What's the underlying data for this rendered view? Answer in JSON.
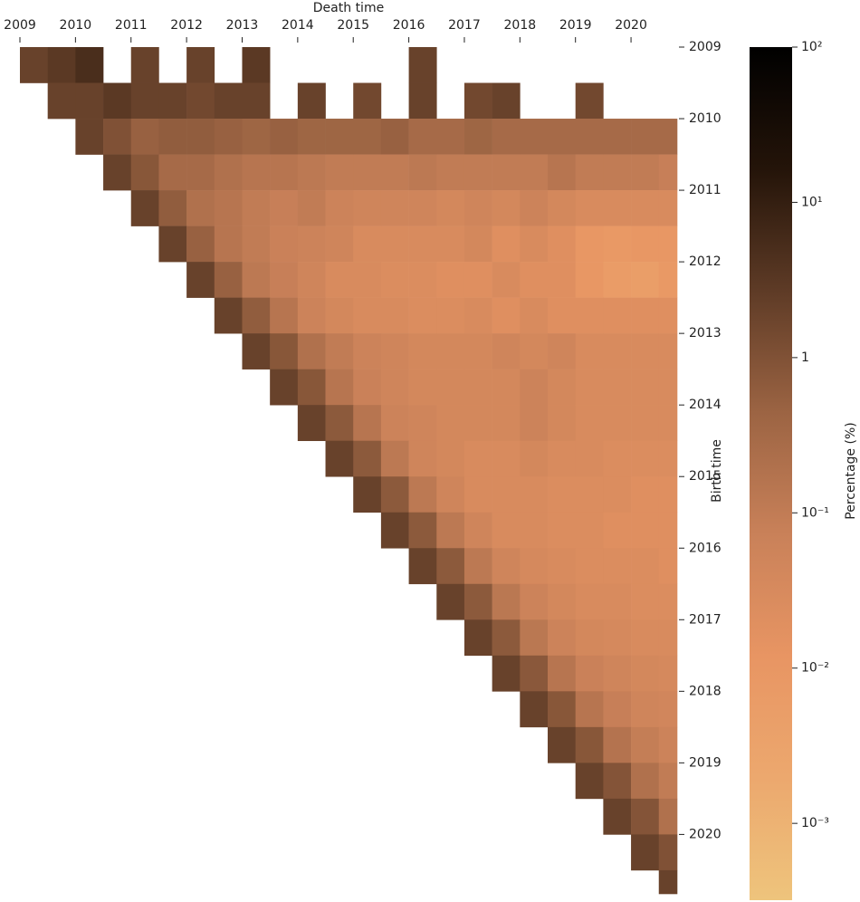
{
  "chart_data": {
    "type": "heatmap",
    "xlabel": "Death time",
    "ylabel": "Birth time",
    "colorbar_label": "Percentage (%)",
    "xbins": [
      2009,
      2009.5,
      2010,
      2010.5,
      2011,
      2011.5,
      2012,
      2012.5,
      2013,
      2013.5,
      2014,
      2014.5,
      2015,
      2015.5,
      2016,
      2016.5,
      2017,
      2017.5,
      2018,
      2018.5,
      2019,
      2019.5,
      2020,
      2020.5,
      2020.83
    ],
    "ybins": [
      2009,
      2009.5,
      2010,
      2010.5,
      2011,
      2011.5,
      2012,
      2012.5,
      2013,
      2013.5,
      2014,
      2014.5,
      2015,
      2015.5,
      2016,
      2016.5,
      2017,
      2017.5,
      2018,
      2018.5,
      2019,
      2019.5,
      2020,
      2020.5,
      2020.83
    ],
    "xlim": [
      2009,
      2020.83
    ],
    "ylim": [
      2009,
      2020.83
    ],
    "xticks": [
      2009,
      2010,
      2011,
      2012,
      2013,
      2014,
      2015,
      2016,
      2017,
      2018,
      2019,
      2020
    ],
    "yticks": [
      2009,
      2010,
      2011,
      2012,
      2013,
      2014,
      2015,
      2016,
      2017,
      2018,
      2019,
      2020
    ],
    "clim": [
      0.00032,
      100
    ],
    "log_color": true,
    "colormap": [
      "#eec47c",
      "#eca86e",
      "#e89563",
      "#c98159",
      "#9c6443",
      "#5e3b26",
      "#241409",
      "#000000"
    ],
    "cticks": [
      {
        "value": 0.001,
        "label": "10⁻³"
      },
      {
        "value": 0.01,
        "label": "10⁻²"
      },
      {
        "value": 0.1,
        "label": "10⁻¹"
      },
      1,
      {
        "value": 10,
        "label": "10¹"
      },
      {
        "value": 100,
        "label": "10²"
      }
    ],
    "z": [
      [
        2,
        3,
        5,
        null,
        2,
        null,
        2,
        null,
        3,
        null,
        null,
        null,
        null,
        null,
        2,
        null,
        null,
        null,
        null,
        null,
        null,
        null,
        null,
        null
      ],
      [
        null,
        2,
        2,
        3,
        2,
        2,
        1.5,
        2,
        2,
        null,
        2,
        null,
        1.5,
        null,
        2,
        null,
        1.5,
        2,
        null,
        null,
        1.5,
        null,
        null,
        null
      ],
      [
        null,
        null,
        2,
        1,
        0.5,
        0.6,
        0.6,
        0.5,
        0.4,
        0.5,
        0.4,
        0.4,
        0.4,
        0.5,
        0.3,
        0.3,
        0.4,
        0.3,
        0.3,
        0.3,
        0.3,
        0.3,
        0.3,
        0.3
      ],
      [
        null,
        null,
        null,
        2,
        0.8,
        0.3,
        0.3,
        0.2,
        0.15,
        0.15,
        0.12,
        0.1,
        0.1,
        0.1,
        0.12,
        0.1,
        0.1,
        0.1,
        0.1,
        0.15,
        0.1,
        0.1,
        0.1,
        0.08
      ],
      [
        null,
        null,
        null,
        null,
        2,
        0.6,
        0.2,
        0.15,
        0.1,
        0.08,
        0.1,
        0.06,
        0.05,
        0.05,
        0.05,
        0.04,
        0.05,
        0.04,
        0.06,
        0.04,
        0.03,
        0.03,
        0.03,
        0.03
      ],
      [
        null,
        null,
        null,
        null,
        null,
        2,
        0.5,
        0.15,
        0.1,
        0.07,
        0.06,
        0.05,
        0.03,
        0.03,
        0.03,
        0.03,
        0.04,
        0.02,
        0.03,
        0.02,
        0.01,
        0.008,
        0.01,
        0.01
      ],
      [
        null,
        null,
        null,
        null,
        null,
        null,
        2,
        0.5,
        0.12,
        0.08,
        0.05,
        0.03,
        0.03,
        0.025,
        0.025,
        0.02,
        0.02,
        0.03,
        0.02,
        0.02,
        0.01,
        0.006,
        0.005,
        0.008
      ],
      [
        null,
        null,
        null,
        null,
        null,
        null,
        null,
        2,
        0.6,
        0.15,
        0.06,
        0.04,
        0.03,
        0.03,
        0.025,
        0.025,
        0.03,
        0.02,
        0.03,
        0.02,
        0.02,
        0.02,
        0.02,
        0.02
      ],
      [
        null,
        null,
        null,
        null,
        null,
        null,
        null,
        null,
        2,
        0.8,
        0.2,
        0.1,
        0.06,
        0.05,
        0.04,
        0.04,
        0.04,
        0.05,
        0.04,
        0.05,
        0.03,
        0.03,
        0.03,
        0.03
      ],
      [
        null,
        null,
        null,
        null,
        null,
        null,
        null,
        null,
        null,
        2,
        0.8,
        0.15,
        0.07,
        0.05,
        0.04,
        0.04,
        0.04,
        0.04,
        0.06,
        0.04,
        0.03,
        0.03,
        0.03,
        0.03
      ],
      [
        null,
        null,
        null,
        null,
        null,
        null,
        null,
        null,
        null,
        null,
        2,
        0.7,
        0.15,
        0.06,
        0.05,
        0.04,
        0.04,
        0.04,
        0.06,
        0.04,
        0.03,
        0.03,
        0.03,
        0.03
      ],
      [
        null,
        null,
        null,
        null,
        null,
        null,
        null,
        null,
        null,
        null,
        null,
        2,
        0.7,
        0.12,
        0.05,
        0.04,
        0.03,
        0.03,
        0.04,
        0.03,
        0.03,
        0.025,
        0.025,
        0.025
      ],
      [
        null,
        null,
        null,
        null,
        null,
        null,
        null,
        null,
        null,
        null,
        null,
        null,
        2,
        0.7,
        0.12,
        0.05,
        0.03,
        0.03,
        0.03,
        0.025,
        0.025,
        0.025,
        0.02,
        0.02
      ],
      [
        null,
        null,
        null,
        null,
        null,
        null,
        null,
        null,
        null,
        null,
        null,
        null,
        null,
        2,
        0.7,
        0.12,
        0.05,
        0.03,
        0.03,
        0.025,
        0.025,
        0.02,
        0.02,
        0.02
      ],
      [
        null,
        null,
        null,
        null,
        null,
        null,
        null,
        null,
        null,
        null,
        null,
        null,
        null,
        null,
        2,
        0.7,
        0.12,
        0.05,
        0.035,
        0.03,
        0.025,
        0.025,
        0.025,
        0.02
      ],
      [
        null,
        null,
        null,
        null,
        null,
        null,
        null,
        null,
        null,
        null,
        null,
        null,
        null,
        null,
        null,
        2,
        0.7,
        0.13,
        0.06,
        0.04,
        0.03,
        0.03,
        0.025,
        0.025
      ],
      [
        null,
        null,
        null,
        null,
        null,
        null,
        null,
        null,
        null,
        null,
        null,
        null,
        null,
        null,
        null,
        null,
        2,
        0.7,
        0.13,
        0.06,
        0.04,
        0.035,
        0.03,
        0.03
      ],
      [
        null,
        null,
        null,
        null,
        null,
        null,
        null,
        null,
        null,
        null,
        null,
        null,
        null,
        null,
        null,
        null,
        null,
        2,
        0.75,
        0.15,
        0.07,
        0.05,
        0.04,
        0.035
      ],
      [
        null,
        null,
        null,
        null,
        null,
        null,
        null,
        null,
        null,
        null,
        null,
        null,
        null,
        null,
        null,
        null,
        null,
        null,
        2,
        0.8,
        0.15,
        0.08,
        0.05,
        0.045
      ],
      [
        null,
        null,
        null,
        null,
        null,
        null,
        null,
        null,
        null,
        null,
        null,
        null,
        null,
        null,
        null,
        null,
        null,
        null,
        null,
        2,
        0.8,
        0.17,
        0.09,
        0.06
      ],
      [
        null,
        null,
        null,
        null,
        null,
        null,
        null,
        null,
        null,
        null,
        null,
        null,
        null,
        null,
        null,
        null,
        null,
        null,
        null,
        null,
        2,
        0.9,
        0.2,
        0.1
      ],
      [
        null,
        null,
        null,
        null,
        null,
        null,
        null,
        null,
        null,
        null,
        null,
        null,
        null,
        null,
        null,
        null,
        null,
        null,
        null,
        null,
        null,
        2,
        0.9,
        0.2
      ],
      [
        null,
        null,
        null,
        null,
        null,
        null,
        null,
        null,
        null,
        null,
        null,
        null,
        null,
        null,
        null,
        null,
        null,
        null,
        null,
        null,
        null,
        null,
        2,
        1
      ],
      [
        null,
        null,
        null,
        null,
        null,
        null,
        null,
        null,
        null,
        null,
        null,
        null,
        null,
        null,
        null,
        null,
        null,
        null,
        null,
        null,
        null,
        null,
        null,
        2
      ]
    ]
  }
}
